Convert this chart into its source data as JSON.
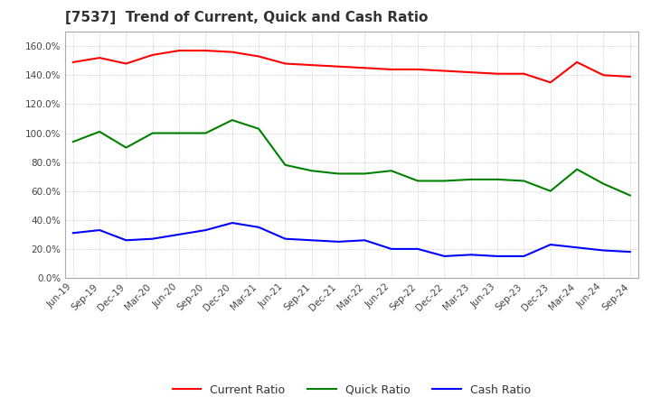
{
  "title": "[7537]  Trend of Current, Quick and Cash Ratio",
  "x_labels": [
    "Jun-19",
    "Sep-19",
    "Dec-19",
    "Mar-20",
    "Jun-20",
    "Sep-20",
    "Dec-20",
    "Mar-21",
    "Jun-21",
    "Sep-21",
    "Dec-21",
    "Mar-22",
    "Jun-22",
    "Sep-22",
    "Dec-22",
    "Mar-23",
    "Jun-23",
    "Sep-23",
    "Dec-23",
    "Mar-24",
    "Jun-24",
    "Sep-24"
  ],
  "current_ratio": [
    149.0,
    152.0,
    148.0,
    154.0,
    157.0,
    157.0,
    156.0,
    153.0,
    148.0,
    147.0,
    146.0,
    145.0,
    144.0,
    144.0,
    143.0,
    142.0,
    141.0,
    141.0,
    135.0,
    149.0,
    140.0,
    139.0
  ],
  "quick_ratio": [
    94.0,
    101.0,
    90.0,
    100.0,
    100.0,
    100.0,
    109.0,
    103.0,
    78.0,
    74.0,
    72.0,
    72.0,
    74.0,
    67.0,
    67.0,
    68.0,
    68.0,
    67.0,
    60.0,
    75.0,
    65.0,
    57.0
  ],
  "cash_ratio": [
    31.0,
    33.0,
    26.0,
    27.0,
    30.0,
    33.0,
    38.0,
    35.0,
    27.0,
    26.0,
    25.0,
    26.0,
    20.0,
    20.0,
    15.0,
    16.0,
    15.0,
    15.0,
    23.0,
    21.0,
    19.0,
    18.0
  ],
  "current_color": "#ff0000",
  "quick_color": "#008000",
  "cash_color": "#0000ff",
  "ylim": [
    0,
    170
  ],
  "yticks": [
    0.0,
    20.0,
    40.0,
    60.0,
    80.0,
    100.0,
    120.0,
    140.0,
    160.0
  ],
  "legend_labels": [
    "Current Ratio",
    "Quick Ratio",
    "Cash Ratio"
  ],
  "background_color": "#ffffff",
  "grid_color": "#aaaaaa"
}
